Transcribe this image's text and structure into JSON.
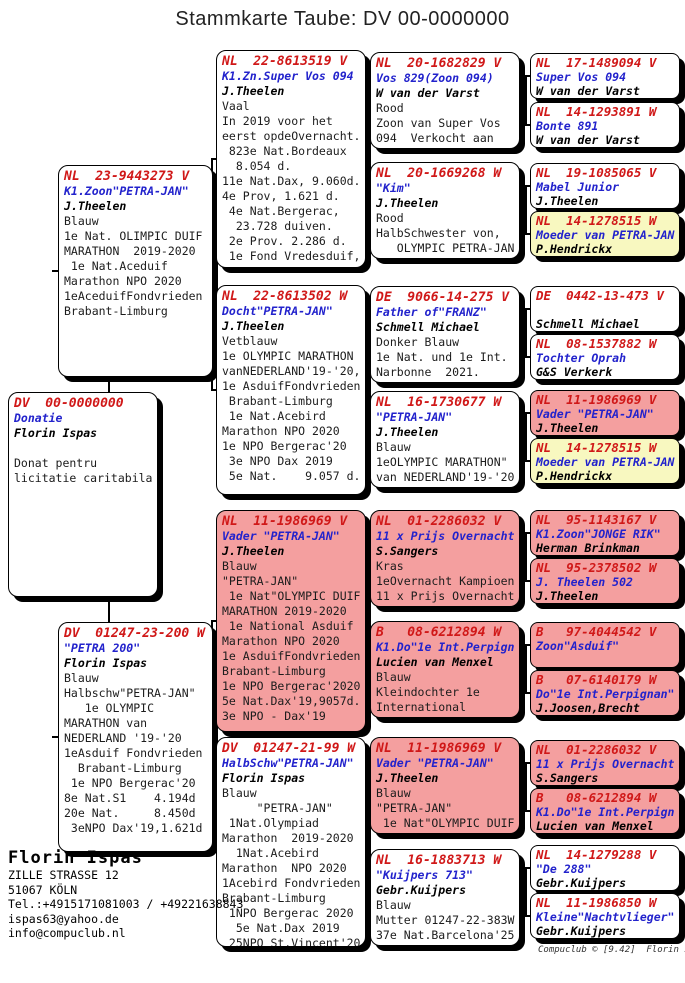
{
  "title": "Stammkarte Taube: DV  00-0000000",
  "subject": {
    "ring": "DV  00-0000000",
    "name": "Donatie",
    "owner": "Florin Ispas",
    "desc": "\nDonat pentru\nlicitatie caritabila"
  },
  "father": {
    "ring": "NL  23-9443273 V",
    "name": "K1.Zoon\"PETRA-JAN\"",
    "owner": "J.Theelen",
    "desc": "Blauw\n1e Nat. OLIMPIC DUIF\nMARATHON  2019-2020\n 1e Nat.Aceduif\nMarathon NPO 2020\n1eAceduifFondvrieden\nBrabant-Limburg"
  },
  "mother": {
    "ring": "DV  01247-23-200 W",
    "name": "\"PETRA 200\"",
    "owner": "Florin Ispas",
    "desc": "Blauw\nHalbschw\"PETRA-JAN\"\n   1e OLYMPIC\nMARATHON van\nNEDERLAND '19-'20\n1eAsduif Fondvrieden\n  Brabant-Limburg\n 1e NPO Bergerac'20\n8e Nat.S1    4.194d\n20e Nat.     8.450d\n 3eNPO Dax'19,1.621d"
  },
  "grandparents": [
    {
      "ring": "NL  22-8613519 V",
      "name": "K1.Zn.Super Vos 094",
      "owner": "J.Theelen",
      "desc": "Vaal\nIn 2019 voor het\neerst opdeOvernacht.\n 823e Nat.Bordeaux\n  8.054 d.\n11e Nat.Dax, 9.060d.\n4e Prov, 1.621 d.\n 4e Nat.Bergerac,\n  23.728 duiven.\n 2e Prov. 2.286 d.\n 1e Fond Vredesduif,"
    },
    {
      "ring": "NL  22-8613502 W",
      "name": "Docht\"PETRA-JAN\"",
      "owner": "J.Theelen",
      "desc": "Vetblauw\n1e OLYMPIC MARATHON\nvanNEDERLAND'19-'20,\n1e AsduifFondvrieden\n Brabant-Limburg\n 1e Nat.Acebird\nMarathon NPO 2020\n1e NPO Bergerac'20\n 3e NPO Dax 2019\n 5e Nat.    9.057 d."
    },
    {
      "ring": "NL  11-1986969 V",
      "name": "Vader \"PETRA-JAN\"",
      "owner": "J.Theelen",
      "desc": "Blauw\n\"PETRA-JAN\"\n 1e Nat\"OLYMPIC DUIF\nMARATHON 2019-2020\n 1e National Asduif\nMarathon NPO 2020\n1e AsduifFondvrieden\nBrabant-Limburg\n1e NPO Bergerac'2020\n5e Nat.Dax'19,9057d.\n3e NPO - Dax'19"
    },
    {
      "ring": "DV  01247-21-99 W",
      "name": "HalbSchw\"PETRA-JAN\"",
      "owner": "Florin Ispas",
      "desc": "Blauw\n     \"PETRA-JAN\"\n 1Nat.Olympiad\nMarathon  2019-2020\n  1Nat.Acebird\nMarathon  NPO 2020\n1Acebird Fondvrieden\nBrabant-Limburg\n 1NPO Bergerac 2020\n  5e Nat.Dax 2019\n 25NPO St.Vincent'20"
    }
  ],
  "greatgrandparents": [
    {
      "ring": "NL  20-1682829 V",
      "name": "Vos 829(Zoon 094)",
      "owner": "W van der Varst",
      "desc": "Rood\nZoon van Super Vos\n094  Verkocht aan"
    },
    {
      "ring": "NL  20-1669268 W",
      "name": "\"Kim\"",
      "owner": "J.Theelen",
      "desc": "Rood\nHalbSchwester von,\n   OLYMPIC PETRA-JAN"
    },
    {
      "ring": "DE  9066-14-275 V",
      "name": "Father of\"FRANZ\"",
      "owner": "Schmell Michael",
      "desc": "Donker Blauw\n1e Nat. und 1e Int.\nNarbonne  2021."
    },
    {
      "ring": "NL  16-1730677 W",
      "name": "\"PETRA-JAN\"",
      "owner": "J.Theelen",
      "desc": "Blauw\n1eOLYMPIC MARATHON\"\nvan NEDERLAND'19-'20"
    },
    {
      "ring": "NL  01-2286032 V",
      "name": "11 x Prijs Overnacht",
      "owner": "S.Sangers",
      "desc": "Kras\n1eOvernacht Kampioen\n11 x Prijs Overnacht"
    },
    {
      "ring": "B   08-6212894 W",
      "name": "K1.Do\"1e Int.Perpign",
      "owner": "Lucien van Menxel",
      "desc": "Blauw\nKleindochter 1e\nInternational"
    },
    {
      "ring": "NL  11-1986969 V",
      "name": "Vader \"PETRA-JAN\"",
      "owner": "J.Theelen",
      "desc": "Blauw\n\"PETRA-JAN\"\n 1e Nat\"OLYMPIC DUIF"
    },
    {
      "ring": "NL  16-1883713 W",
      "name": "\"Kuijpers 713\"",
      "owner": "Gebr.Kuijpers",
      "desc": "Blauw\nMutter 01247-22-383W\n37e Nat.Barcelona'25"
    }
  ],
  "ggggrandparents": [
    {
      "ring": "NL  17-1489094 V",
      "name": "Super Vos 094",
      "owner": "W van der Varst"
    },
    {
      "ring": "NL  14-1293891 W",
      "name": "Bonte 891",
      "owner": "W van der Varst"
    },
    {
      "ring": "NL  19-1085065 V",
      "name": "Mabel Junior",
      "owner": "J.Theelen"
    },
    {
      "ring": "NL  14-1278515 W",
      "name": "Moeder van PETRA-JAN",
      "owner": "P.Hendrickx"
    },
    {
      "ring": "DE  0442-13-473 V",
      "name": "",
      "owner": "Schmell Michael"
    },
    {
      "ring": "NL  08-1537882 W",
      "name": "Tochter Oprah",
      "owner": "G&S Verkerk"
    },
    {
      "ring": "NL  11-1986969 V",
      "name": "Vader \"PETRA-JAN\"",
      "owner": "J.Theelen"
    },
    {
      "ring": "NL  14-1278515 W",
      "name": "Moeder van PETRA-JAN",
      "owner": "P.Hendrickx"
    },
    {
      "ring": "NL  95-1143167 V",
      "name": "K1.Zoon\"JONGE RIK\"",
      "owner": "Herman Brinkman"
    },
    {
      "ring": "NL  95-2378502 W",
      "name": "J. Theelen 502",
      "owner": "J.Theelen"
    },
    {
      "ring": "B   97-4044542 V",
      "name": "Zoon\"Asduif\"",
      "owner": ""
    },
    {
      "ring": "B   07-6140179 W",
      "name": "Do\"1e Int.Perpignan\"",
      "owner": "J.Joosen,Brecht"
    },
    {
      "ring": "NL  01-2286032 V",
      "name": "11 x Prijs Overnacht",
      "owner": "S.Sangers"
    },
    {
      "ring": "B   08-6212894 W",
      "name": "K1.Do\"1e Int.Perpign",
      "owner": "Lucien van Menxel"
    },
    {
      "ring": "NL  14-1279288 V",
      "name": "\"De 288\"",
      "owner": "Gebr.Kuijpers"
    },
    {
      "ring": "NL  11-1986850 W",
      "name": "Kleine\"Nachtvlieger\"",
      "owner": "Gebr.Kuijpers"
    }
  ],
  "contact": {
    "name": "Florin Ispas",
    "address1": "ZILLE STRASSE 12",
    "address2": "51067 KÖLN",
    "phone": "Tel.:+4915171081003 / +49221638843",
    "email1": "ispas63@yahoo.de",
    "email2": "info@compuclub.nl"
  },
  "credit": "Compuclub © [9.42]  Florin Ispas",
  "colors": {
    "ring_red": "#d01818",
    "name_blue": "#2222cc",
    "box_pink": "#f49f9f",
    "box_yellow": "#f8f8c0"
  }
}
